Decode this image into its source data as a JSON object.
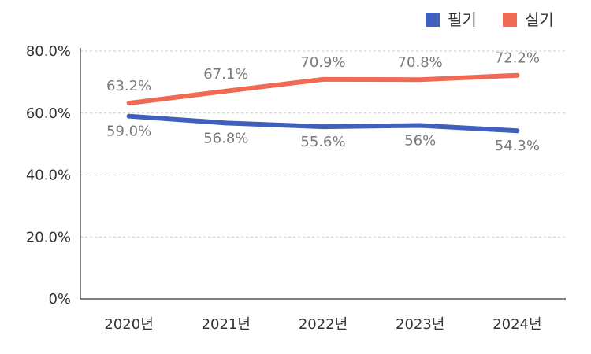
{
  "chart_data": {
    "type": "line",
    "categories": [
      "2020년",
      "2021년",
      "2022년",
      "2023년",
      "2024년"
    ],
    "ylim": [
      0,
      80
    ],
    "yticks": [
      "0%",
      "20.0%",
      "40.0%",
      "60.0%",
      "80.0%"
    ],
    "ytick_values": [
      0,
      20,
      40,
      60,
      80
    ],
    "grid": true,
    "legend_position": "top-right",
    "series": [
      {
        "name": "필기",
        "color": "#4160bd",
        "values": [
          59.0,
          56.8,
          55.6,
          56.0,
          54.3
        ],
        "labels": [
          "59.0%",
          "56.8%",
          "55.6%",
          "56%",
          "54.3%"
        ],
        "label_position": "below"
      },
      {
        "name": "실기",
        "color": "#ee6a55",
        "values": [
          63.2,
          67.1,
          70.9,
          70.8,
          72.2
        ],
        "labels": [
          "63.2%",
          "67.1%",
          "70.9%",
          "70.8%",
          "72.2%"
        ],
        "label_position": "above"
      }
    ]
  }
}
